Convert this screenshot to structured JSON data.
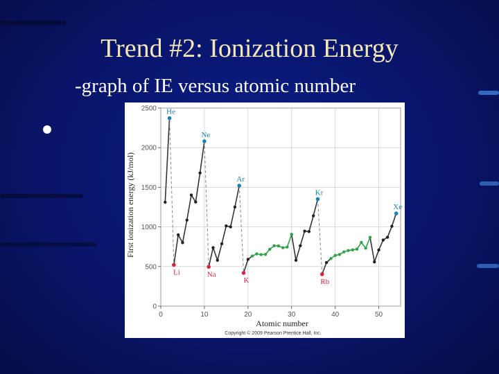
{
  "slide": {
    "title": "Trend #2: Ionization Energy",
    "subtitle": "-graph of IE versus atomic number",
    "colors": {
      "background": "#08156a",
      "title": "#f5e7b8",
      "subtitle": "#ffffff"
    }
  },
  "chart_data": {
    "type": "line",
    "title": "",
    "xlabel": "Atomic number",
    "ylabel": "First ionization energy (kJ/mol)",
    "xlim": [
      0,
      55
    ],
    "ylim": [
      0,
      2500
    ],
    "x_ticks": [
      0,
      10,
      20,
      30,
      40,
      50
    ],
    "y_ticks": [
      0,
      500,
      1000,
      1500,
      2000,
      2500
    ],
    "credit": "Copyright © 2009 Pearson Prentice Hall, Inc.",
    "colors": {
      "default": "#222222",
      "noble_gas": "#1f7fb5",
      "alkali_metal": "#d9233d",
      "transition_metal": "#2fa34a"
    },
    "series": [
      {
        "x": [
          1,
          2,
          3,
          4,
          5,
          6,
          7,
          8,
          9,
          10,
          11,
          12,
          13,
          14,
          15,
          16,
          17,
          18,
          19,
          20,
          21,
          22,
          23,
          24,
          25,
          26,
          27,
          28,
          29,
          30,
          31,
          32,
          33,
          34,
          35,
          36,
          37,
          38,
          39,
          40,
          41,
          42,
          43,
          44,
          45,
          46,
          47,
          48,
          49,
          50,
          51,
          52,
          53,
          54
        ],
        "y": [
          1312,
          2372,
          520,
          900,
          801,
          1086,
          1402,
          1314,
          1681,
          2081,
          496,
          738,
          578,
          787,
          1012,
          1000,
          1251,
          1521,
          419,
          590,
          633,
          659,
          651,
          653,
          717,
          762,
          760,
          737,
          746,
          906,
          579,
          762,
          947,
          941,
          1140,
          1351,
          403,
          550,
          600,
          640,
          652,
          684,
          702,
          710,
          720,
          804,
          731,
          868,
          558,
          709,
          834,
          869,
          1008,
          1170
        ],
        "point_groups": [
          "default",
          "noble_gas",
          "alkali_metal",
          "default",
          "default",
          "default",
          "default",
          "default",
          "default",
          "noble_gas",
          "alkali_metal",
          "default",
          "default",
          "default",
          "default",
          "default",
          "default",
          "noble_gas",
          "alkali_metal",
          "default",
          "transition_metal",
          "transition_metal",
          "transition_metal",
          "transition_metal",
          "transition_metal",
          "transition_metal",
          "transition_metal",
          "transition_metal",
          "transition_metal",
          "transition_metal",
          "default",
          "default",
          "default",
          "default",
          "default",
          "noble_gas",
          "alkali_metal",
          "default",
          "transition_metal",
          "transition_metal",
          "transition_metal",
          "transition_metal",
          "transition_metal",
          "transition_metal",
          "transition_metal",
          "transition_metal",
          "transition_metal",
          "transition_metal",
          "default",
          "default",
          "default",
          "default",
          "default",
          "noble_gas"
        ]
      }
    ],
    "annotations": [
      {
        "text": "He",
        "x": 2,
        "group": "noble_gas",
        "place": "above"
      },
      {
        "text": "Ne",
        "x": 10,
        "group": "noble_gas",
        "place": "above"
      },
      {
        "text": "Ar",
        "x": 18,
        "group": "noble_gas",
        "place": "above"
      },
      {
        "text": "Kr",
        "x": 36,
        "group": "noble_gas",
        "place": "above"
      },
      {
        "text": "Xe",
        "x": 54,
        "group": "noble_gas",
        "place": "above"
      },
      {
        "text": "Li",
        "x": 3,
        "group": "alkali_metal",
        "place": "below"
      },
      {
        "text": "Na",
        "x": 11,
        "group": "alkali_metal",
        "place": "below"
      },
      {
        "text": "K",
        "x": 19,
        "group": "alkali_metal",
        "place": "below"
      },
      {
        "text": "Rb",
        "x": 37,
        "group": "alkali_metal",
        "place": "below"
      }
    ]
  }
}
